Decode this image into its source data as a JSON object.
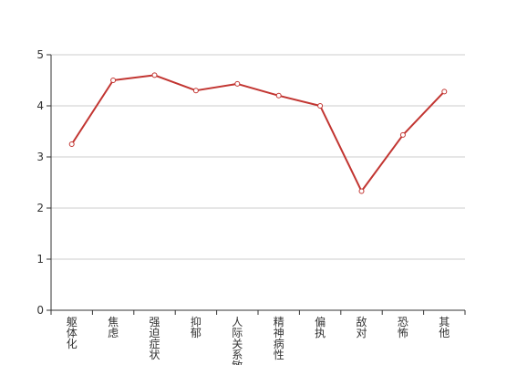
{
  "chart_data": {
    "type": "line",
    "title": "",
    "xlabel": "",
    "ylabel": "",
    "categories": [
      "躯体化",
      "焦虑",
      "强迫症状",
      "抑郁",
      "人际关系敏感",
      "精神病性",
      "偏执",
      "敌对",
      "恐怖",
      "其他"
    ],
    "values": [
      3.25,
      4.5,
      4.6,
      4.3,
      4.43,
      4.2,
      4.0,
      2.33,
      3.43,
      4.28
    ],
    "ylim": [
      0,
      5
    ],
    "yticks": [
      0,
      1,
      2,
      3,
      4,
      5
    ],
    "grid": true,
    "legend": "none"
  },
  "colors": {
    "line": "#c23531",
    "grid": "#cccccc",
    "axis": "#333333"
  }
}
